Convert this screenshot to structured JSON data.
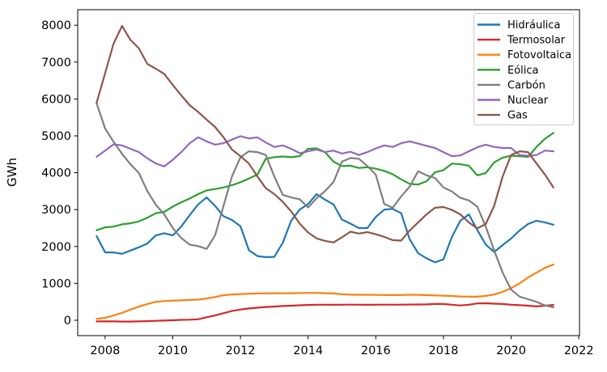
{
  "figure": {
    "ylabel": "GWh"
  },
  "chart_data": {
    "type": "line",
    "title": "",
    "xlabel": "",
    "ylabel": "GWh",
    "grid": false,
    "legend_position": "upper right",
    "xlim": [
      2007.19,
      2022.02
    ],
    "ylim": [
      -417,
      8421
    ],
    "x_ticks": [
      2008,
      2010,
      2012,
      2014,
      2016,
      2018,
      2020,
      2022
    ],
    "y_ticks": [
      0,
      1000,
      2000,
      3000,
      4000,
      5000,
      6000,
      7000,
      8000
    ],
    "x": [
      2007.75,
      2008.0,
      2008.25,
      2008.5,
      2008.75,
      2009.0,
      2009.25,
      2009.5,
      2009.75,
      2010.0,
      2010.25,
      2010.5,
      2010.75,
      2011.0,
      2011.25,
      2011.5,
      2011.75,
      2012.0,
      2012.25,
      2012.5,
      2012.75,
      2013.0,
      2013.25,
      2013.5,
      2013.75,
      2014.0,
      2014.25,
      2014.5,
      2014.75,
      2015.0,
      2015.25,
      2015.5,
      2015.75,
      2016.0,
      2016.25,
      2016.5,
      2016.75,
      2017.0,
      2017.25,
      2017.5,
      2017.75,
      2018.0,
      2018.25,
      2018.5,
      2018.75,
      2019.0,
      2019.25,
      2019.5,
      2019.75,
      2020.0,
      2020.25,
      2020.5,
      2020.75,
      2021.0,
      2021.25
    ],
    "series": [
      {
        "name": "Hidráulica",
        "color": "#1f77b4",
        "values": [
          2280,
          1840,
          1840,
          1800,
          1890,
          1980,
          2080,
          2300,
          2360,
          2300,
          2540,
          2850,
          3140,
          3330,
          3100,
          2820,
          2720,
          2550,
          1900,
          1740,
          1710,
          1720,
          2100,
          2700,
          3000,
          3150,
          3420,
          3270,
          3140,
          2730,
          2620,
          2500,
          2500,
          2800,
          3000,
          3020,
          2900,
          2200,
          1820,
          1680,
          1570,
          1650,
          2260,
          2700,
          2870,
          2450,
          2050,
          1850,
          2040,
          2215,
          2435,
          2610,
          2700,
          2650,
          2590
        ]
      },
      {
        "name": "Termosolar",
        "color": "#d62728",
        "values": [
          -30,
          -30,
          -30,
          -35,
          -35,
          -30,
          -25,
          -15,
          -10,
          0,
          10,
          15,
          25,
          80,
          130,
          190,
          250,
          290,
          320,
          340,
          360,
          370,
          385,
          395,
          405,
          415,
          420,
          420,
          418,
          420,
          422,
          420,
          418,
          420,
          422,
          420,
          422,
          425,
          428,
          430,
          440,
          440,
          420,
          400,
          420,
          455,
          460,
          450,
          440,
          420,
          408,
          395,
          375,
          395,
          415
        ]
      },
      {
        "name": "Fotovoltaica",
        "color": "#ff7f0e",
        "values": [
          40,
          65,
          130,
          200,
          290,
          370,
          440,
          500,
          520,
          532,
          540,
          550,
          558,
          590,
          630,
          680,
          700,
          710,
          718,
          725,
          728,
          733,
          730,
          732,
          738,
          740,
          740,
          732,
          725,
          705,
          692,
          690,
          690,
          687,
          685,
          682,
          685,
          690,
          688,
          682,
          672,
          665,
          658,
          645,
          640,
          638,
          660,
          700,
          770,
          870,
          1000,
          1160,
          1290,
          1420,
          1510
        ]
      },
      {
        "name": "Eólica",
        "color": "#2ca02c",
        "values": [
          2440,
          2520,
          2540,
          2600,
          2630,
          2680,
          2780,
          2900,
          2940,
          3080,
          3200,
          3300,
          3420,
          3520,
          3560,
          3600,
          3660,
          3740,
          3840,
          3950,
          4380,
          4420,
          4440,
          4420,
          4450,
          4650,
          4660,
          4560,
          4300,
          4180,
          4190,
          4130,
          4150,
          4110,
          4050,
          3960,
          3820,
          3700,
          3680,
          3770,
          4010,
          4070,
          4250,
          4230,
          4190,
          3930,
          3990,
          4280,
          4410,
          4460,
          4450,
          4430,
          4700,
          4920,
          5080
        ]
      },
      {
        "name": "Carbón",
        "color": "#7f7f7f",
        "values": [
          5880,
          5200,
          4840,
          4510,
          4230,
          3990,
          3500,
          3130,
          2870,
          2500,
          2230,
          2050,
          2010,
          1935,
          2300,
          3100,
          3900,
          4420,
          4580,
          4560,
          4480,
          3900,
          3400,
          3330,
          3280,
          3060,
          3310,
          3500,
          3750,
          4300,
          4400,
          4380,
          4180,
          3950,
          3150,
          3050,
          3360,
          3620,
          4040,
          3930,
          3860,
          3600,
          3490,
          3320,
          3250,
          3080,
          2540,
          1890,
          1290,
          830,
          640,
          570,
          500,
          400,
          350
        ]
      },
      {
        "name": "Nuclear",
        "color": "#9467bd",
        "values": [
          4430,
          4600,
          4770,
          4740,
          4650,
          4560,
          4390,
          4250,
          4170,
          4350,
          4560,
          4800,
          4960,
          4850,
          4760,
          4800,
          4900,
          4990,
          4930,
          4960,
          4820,
          4700,
          4740,
          4650,
          4530,
          4580,
          4630,
          4560,
          4600,
          4520,
          4570,
          4480,
          4560,
          4660,
          4740,
          4700,
          4800,
          4850,
          4790,
          4730,
          4670,
          4560,
          4450,
          4470,
          4580,
          4690,
          4760,
          4700,
          4670,
          4670,
          4480,
          4460,
          4480,
          4600,
          4580
        ]
      },
      {
        "name": "Gas",
        "color": "#8c564b",
        "values": [
          5900,
          6700,
          7500,
          7980,
          7600,
          7370,
          6950,
          6820,
          6680,
          6380,
          6100,
          5830,
          5650,
          5440,
          5240,
          4960,
          4630,
          4450,
          4250,
          3900,
          3580,
          3420,
          3210,
          2950,
          2620,
          2380,
          2220,
          2150,
          2110,
          2250,
          2400,
          2350,
          2390,
          2330,
          2260,
          2170,
          2160,
          2430,
          2650,
          2870,
          3050,
          3070,
          2990,
          2870,
          2650,
          2490,
          2610,
          3100,
          3900,
          4480,
          4580,
          4560,
          4250,
          3950,
          3600
        ]
      }
    ]
  }
}
